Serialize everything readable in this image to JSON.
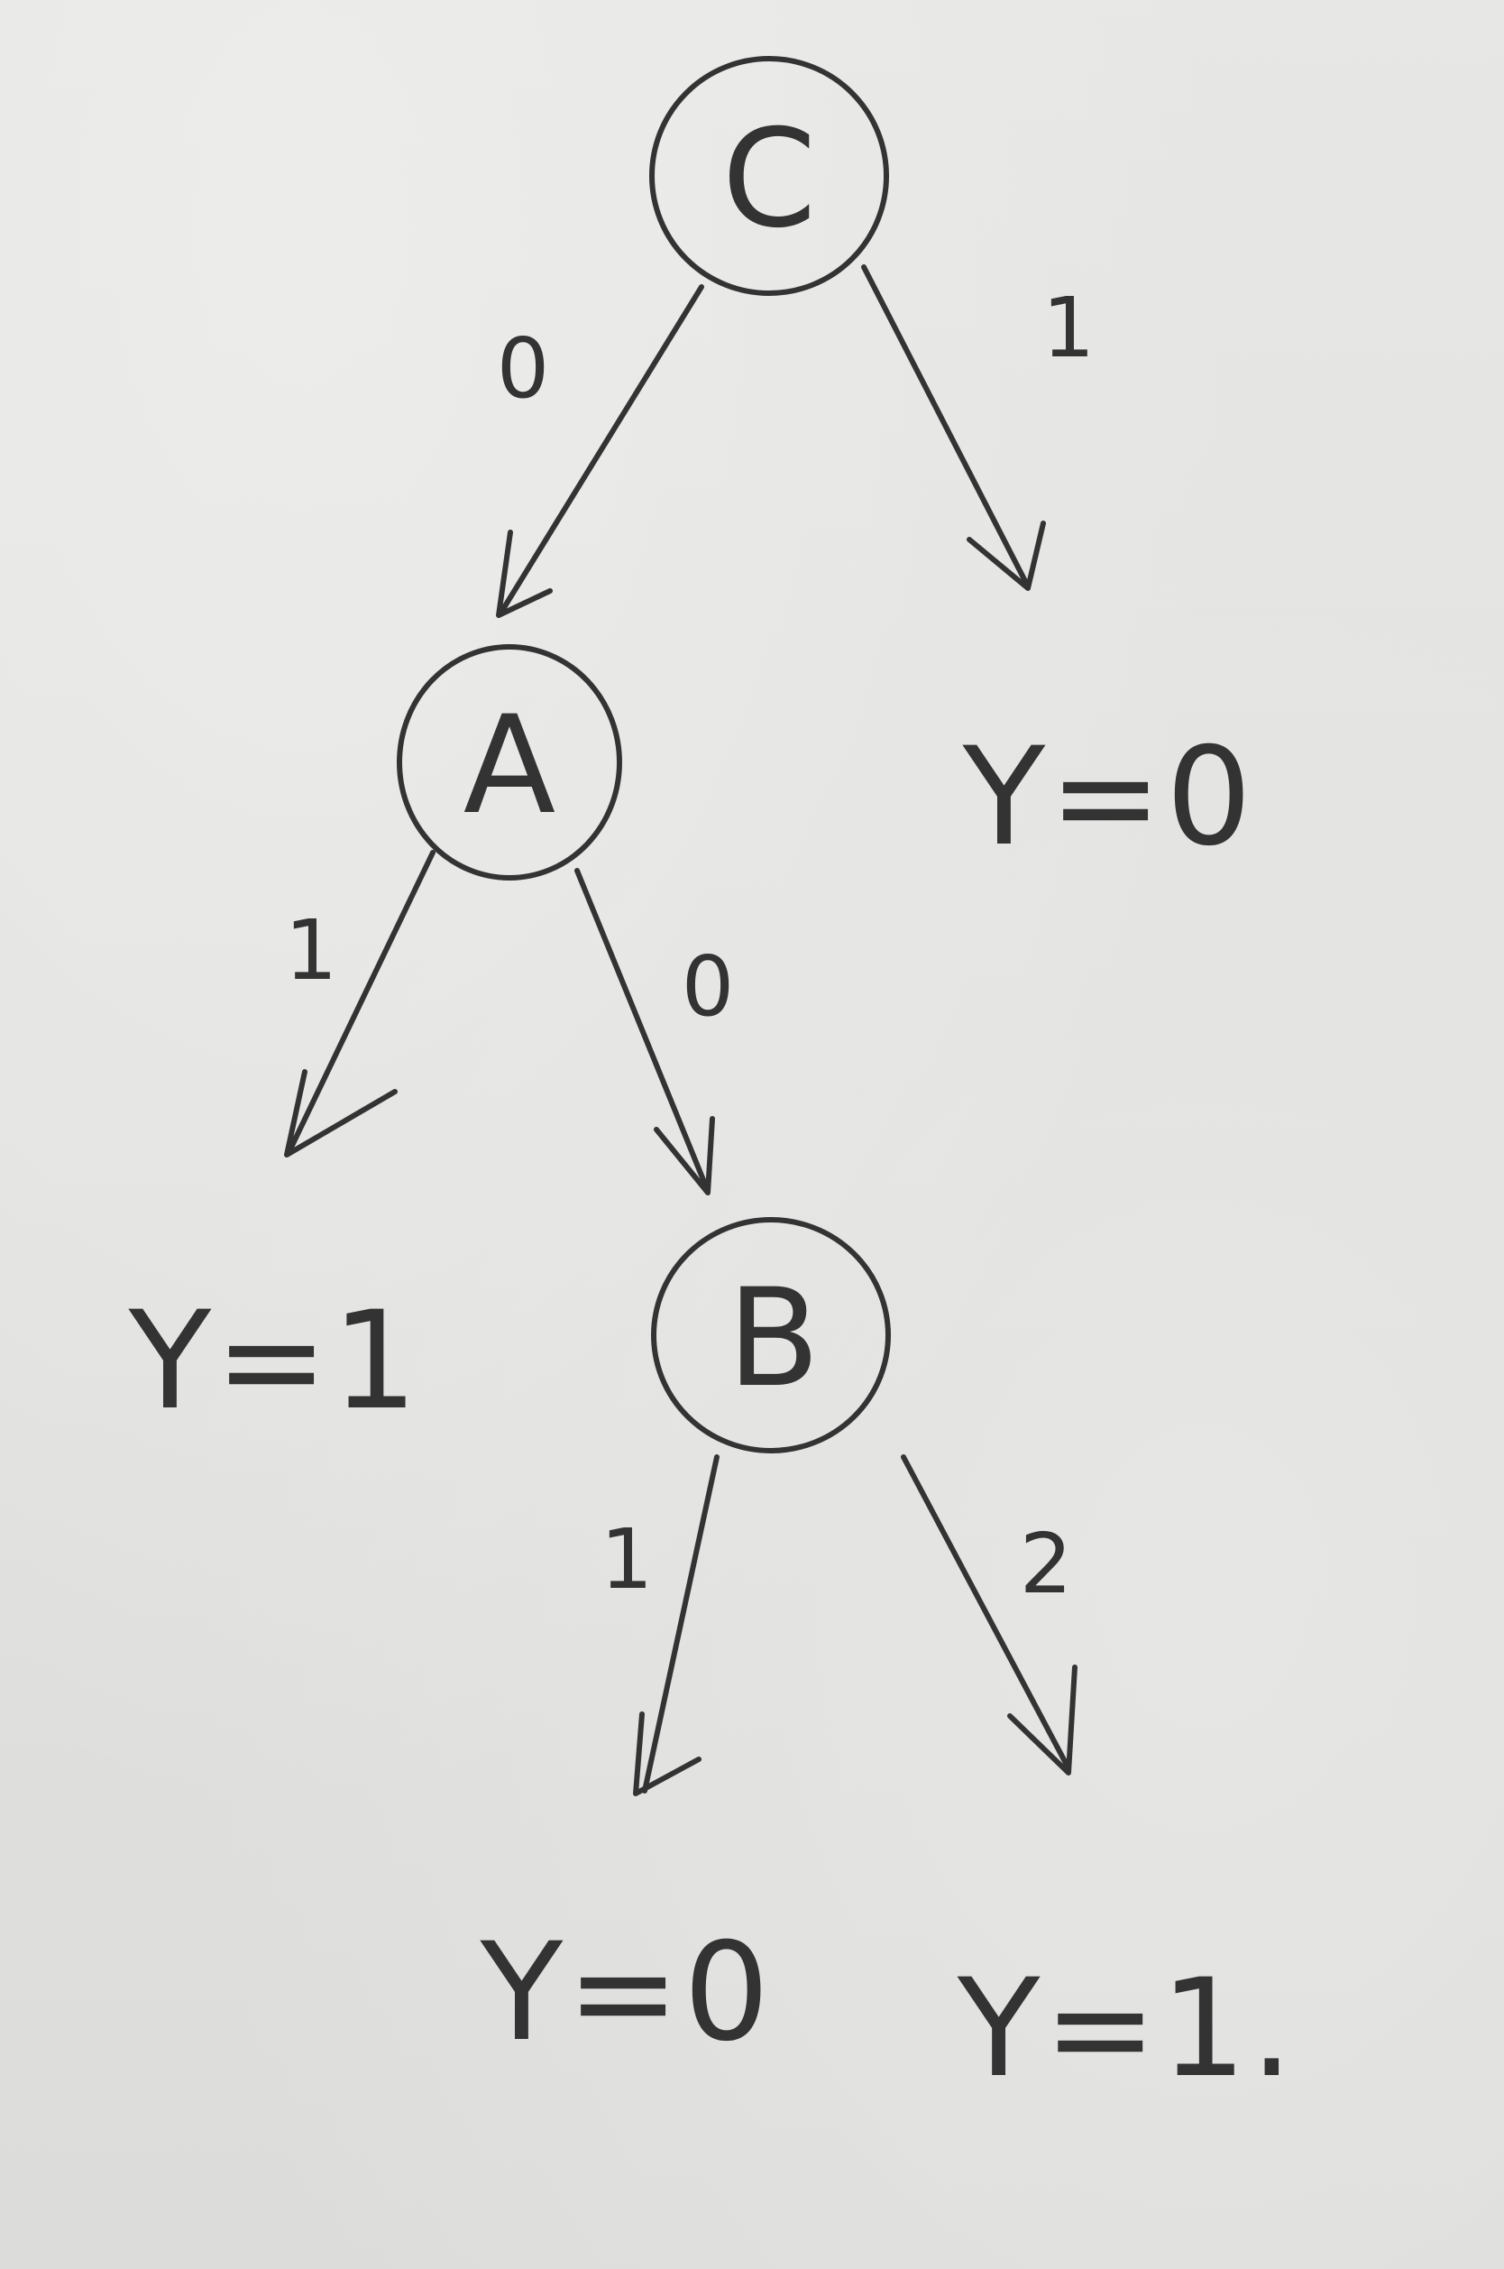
{
  "diagram": {
    "type": "decision-tree",
    "nodes": {
      "root": {
        "label": "C"
      },
      "a": {
        "label": "A"
      },
      "b": {
        "label": "B"
      }
    },
    "edges": {
      "c_to_a": {
        "label": "0"
      },
      "c_to_leaf": {
        "label": "1"
      },
      "a_to_leaf": {
        "label": "1"
      },
      "a_to_b": {
        "label": "0"
      },
      "b_to_leaf1": {
        "label": "1"
      },
      "b_to_leaf2": {
        "label": "2"
      }
    },
    "leaves": {
      "c_right": {
        "text": "Y=0"
      },
      "a_left": {
        "text": "Y=1"
      },
      "b_left": {
        "text": "Y=0"
      },
      "b_right": {
        "text": "Y=1."
      }
    }
  }
}
